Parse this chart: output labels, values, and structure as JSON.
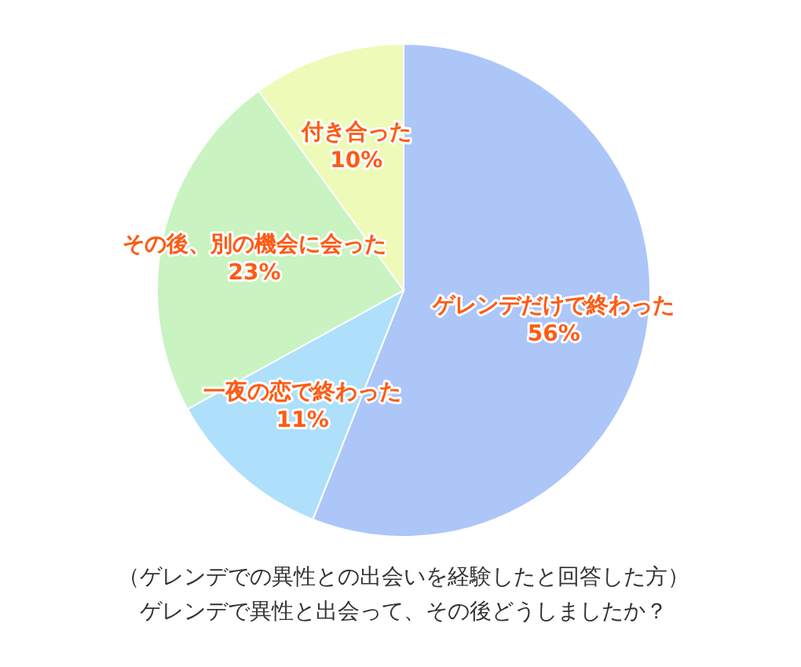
{
  "chart_data": {
    "type": "pie",
    "subtitle": "（ゲレンデでの異性との出会いを経験したと回答した方）",
    "title": "ゲレンデで異性と出会って、その後どうしましたか？",
    "categories": [
      "ゲレンデだけで終わった",
      "一夜の恋で終わった",
      "その後、別の機会に会った",
      "付き合った"
    ],
    "values": [
      56,
      11,
      23,
      10
    ],
    "colors": [
      "#adc6f8",
      "#aee0fb",
      "#c9f3c0",
      "#eefab8"
    ],
    "value_labels": [
      "56%",
      "11%",
      "23%",
      "10%"
    ]
  }
}
